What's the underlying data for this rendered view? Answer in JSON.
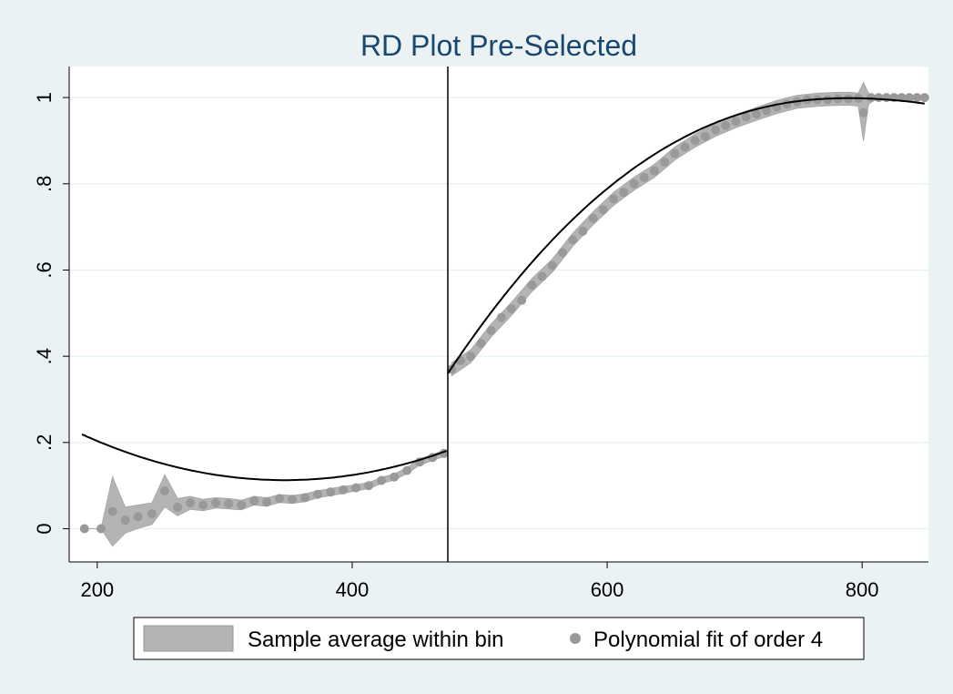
{
  "chart_data": {
    "type": "scatter",
    "title": "RD Plot Pre-Selected",
    "xlabel": "",
    "ylabel": "",
    "xlim": [
      178,
      852
    ],
    "ylim": [
      -0.077,
      1.072
    ],
    "x_ticks": [
      200,
      400,
      600,
      800
    ],
    "y_ticks": [
      0,
      0.2,
      0.4,
      0.6,
      0.8,
      1
    ],
    "y_tick_labels": [
      "0",
      ".2",
      ".4",
      ".6",
      ".8",
      "1"
    ],
    "cutoff": 475,
    "grid": true,
    "legend_position": "bottom",
    "legend": [
      {
        "label": "Sample average within bin",
        "symbol": "area"
      },
      {
        "label": "Polynomial fit of order 4",
        "symbol": "dot"
      }
    ],
    "points_left": [
      [
        190,
        0.0
      ],
      [
        203,
        0.0
      ],
      [
        212,
        0.04
      ],
      [
        222,
        0.02
      ],
      [
        232,
        0.028
      ],
      [
        243,
        0.035
      ],
      [
        253,
        0.088
      ],
      [
        263,
        0.05
      ],
      [
        273,
        0.06
      ],
      [
        283,
        0.055
      ],
      [
        293,
        0.06
      ],
      [
        303,
        0.058
      ],
      [
        313,
        0.055
      ],
      [
        323,
        0.065
      ],
      [
        333,
        0.062
      ],
      [
        343,
        0.07
      ],
      [
        353,
        0.068
      ],
      [
        363,
        0.072
      ],
      [
        373,
        0.08
      ],
      [
        383,
        0.085
      ],
      [
        393,
        0.09
      ],
      [
        403,
        0.095
      ],
      [
        413,
        0.1
      ],
      [
        423,
        0.112
      ],
      [
        433,
        0.12
      ],
      [
        443,
        0.135
      ],
      [
        453,
        0.155
      ],
      [
        463,
        0.165
      ],
      [
        472,
        0.175
      ]
    ],
    "points_right": [
      [
        478,
        0.37
      ],
      [
        485,
        0.39
      ],
      [
        493,
        0.4
      ],
      [
        501,
        0.43
      ],
      [
        509,
        0.46
      ],
      [
        517,
        0.49
      ],
      [
        525,
        0.51
      ],
      [
        533,
        0.53
      ],
      [
        541,
        0.565
      ],
      [
        549,
        0.585
      ],
      [
        557,
        0.61
      ],
      [
        565,
        0.64
      ],
      [
        573,
        0.67
      ],
      [
        581,
        0.69
      ],
      [
        589,
        0.72
      ],
      [
        597,
        0.74
      ],
      [
        605,
        0.765
      ],
      [
        613,
        0.78
      ],
      [
        621,
        0.8
      ],
      [
        629,
        0.815
      ],
      [
        637,
        0.83
      ],
      [
        645,
        0.85
      ],
      [
        653,
        0.87
      ],
      [
        661,
        0.885
      ],
      [
        669,
        0.9
      ],
      [
        677,
        0.91
      ],
      [
        685,
        0.925
      ],
      [
        693,
        0.935
      ],
      [
        701,
        0.945
      ],
      [
        709,
        0.955
      ],
      [
        717,
        0.962
      ],
      [
        725,
        0.97
      ],
      [
        733,
        0.978
      ],
      [
        741,
        0.985
      ],
      [
        749,
        0.99
      ],
      [
        757,
        0.995
      ],
      [
        765,
        0.995
      ],
      [
        773,
        0.995
      ],
      [
        781,
        0.997
      ],
      [
        789,
        0.997
      ],
      [
        797,
        0.998
      ],
      [
        801,
        0.965
      ],
      [
        807,
        1.0
      ],
      [
        813,
        1.0
      ],
      [
        819,
        1.0
      ],
      [
        825,
        1.0
      ],
      [
        831,
        1.0
      ],
      [
        837,
        1.0
      ],
      [
        843,
        1.0
      ],
      [
        849,
        1.0
      ]
    ],
    "band_left": {
      "x": [
        190,
        203,
        212,
        222,
        232,
        243,
        253,
        263,
        273,
        283,
        293,
        303,
        313,
        323,
        333,
        343,
        353,
        363,
        373,
        383,
        393,
        403,
        413,
        423,
        433,
        443,
        453,
        463,
        472
      ],
      "upper": [
        0.0,
        0.0,
        0.12,
        0.05,
        0.055,
        0.06,
        0.125,
        0.07,
        0.075,
        0.068,
        0.072,
        0.07,
        0.066,
        0.075,
        0.072,
        0.079,
        0.077,
        0.081,
        0.088,
        0.093,
        0.098,
        0.102,
        0.107,
        0.119,
        0.127,
        0.142,
        0.162,
        0.172,
        0.182
      ],
      "lower": [
        0.0,
        0.0,
        -0.04,
        -0.01,
        0.001,
        0.01,
        0.051,
        0.03,
        0.045,
        0.042,
        0.048,
        0.046,
        0.044,
        0.055,
        0.052,
        0.061,
        0.059,
        0.063,
        0.072,
        0.077,
        0.082,
        0.088,
        0.093,
        0.105,
        0.113,
        0.128,
        0.148,
        0.158,
        0.168
      ]
    },
    "band_right": {
      "x": [
        478,
        493,
        509,
        525,
        541,
        557,
        573,
        589,
        605,
        621,
        637,
        653,
        669,
        685,
        701,
        717,
        733,
        749,
        765,
        781,
        791,
        797,
        801,
        805,
        813,
        849
      ],
      "upper": [
        0.385,
        0.415,
        0.475,
        0.525,
        0.58,
        0.625,
        0.685,
        0.735,
        0.78,
        0.815,
        0.845,
        0.885,
        0.915,
        0.94,
        0.96,
        0.977,
        0.993,
        1.005,
        1.01,
        1.012,
        1.012,
        1.01,
        1.035,
        1.01,
        1.0,
        1.0
      ],
      "lower": [
        0.355,
        0.385,
        0.445,
        0.495,
        0.55,
        0.595,
        0.655,
        0.705,
        0.75,
        0.785,
        0.815,
        0.855,
        0.885,
        0.91,
        0.93,
        0.947,
        0.963,
        0.975,
        0.98,
        0.982,
        0.982,
        0.98,
        0.9,
        0.985,
        1.0,
        1.0
      ]
    },
    "fit_left": {
      "x_range": [
        188,
        475
      ],
      "coef": [
        0.1815,
        0.001075,
        4.2e-06
      ]
    },
    "fit_right": {
      "x_range": [
        475,
        850
      ],
      "x_peak": 790,
      "y_peak": 0.9985,
      "y_start": 0.36,
      "exponent": 2.2,
      "right_coef": 1.1e-06
    }
  },
  "colors": {
    "page_bg": "#eaf2f3",
    "plot_bg": "#ffffff",
    "grid": "#eaf2f3",
    "band": "#b4b4b4",
    "dot": "#999999",
    "fit_line": "#000000",
    "title": "#1a476f"
  }
}
